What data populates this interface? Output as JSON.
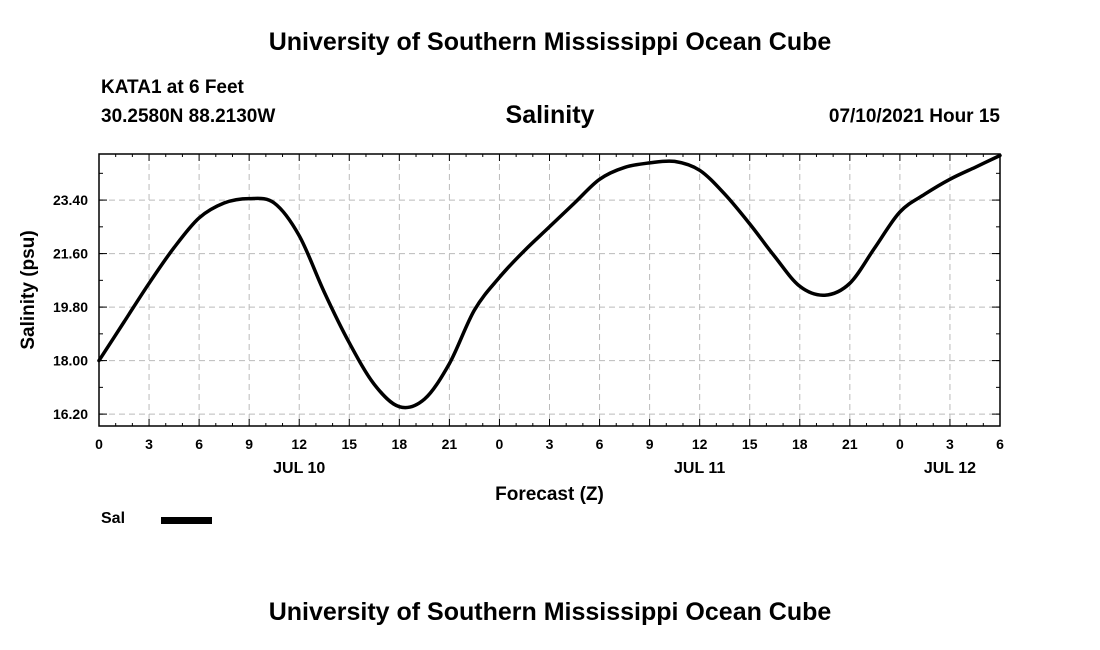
{
  "header": {
    "institution": "University of Southern Mississippi Ocean Cube",
    "station": "KATA1 at 6 Feet",
    "coordinates": "30.2580N  88.2130W",
    "variable": "Salinity",
    "timestamp": "07/10/2021 Hour 15"
  },
  "footer": {
    "institution": "University of Southern Mississippi Ocean Cube"
  },
  "legend": {
    "label": "Sal"
  },
  "chart_data": {
    "type": "line",
    "title": "Salinity",
    "xlabel": "Forecast (Z)",
    "ylabel": "Salinity (psu)",
    "x_unit": "hours",
    "xlim": [
      0,
      54
    ],
    "ylim": [
      15.8,
      24.95
    ],
    "y_ticks": [
      "16.20",
      "18.00",
      "19.80",
      "21.60",
      "23.40"
    ],
    "x_tick_labels": [
      "0",
      "3",
      "6",
      "9",
      "12",
      "15",
      "18",
      "21",
      "0",
      "3",
      "6",
      "9",
      "12",
      "15",
      "18",
      "21",
      "0",
      "3",
      "6"
    ],
    "date_labels": [
      {
        "label": "JUL 10",
        "at": 12
      },
      {
        "label": "JUL 11",
        "at": 36
      },
      {
        "label": "JUL 12",
        "at": 51
      }
    ],
    "grid": true,
    "series": [
      {
        "name": "Sal",
        "color": "#000000",
        "x": [
          0,
          1.5,
          3,
          4.5,
          6,
          7.5,
          9,
          10.5,
          12,
          13.5,
          15,
          16.5,
          18,
          19.5,
          21,
          22.5,
          24,
          25.5,
          27,
          28.5,
          30,
          31.5,
          33,
          34.5,
          36,
          37.5,
          39,
          40.5,
          42,
          43.5,
          45,
          46.5,
          48,
          49.5,
          51,
          52.5,
          54
        ],
        "y": [
          18.0,
          19.3,
          20.6,
          21.8,
          22.8,
          23.3,
          23.45,
          23.3,
          22.2,
          20.3,
          18.6,
          17.2,
          16.45,
          16.7,
          17.9,
          19.7,
          20.8,
          21.7,
          22.5,
          23.3,
          24.1,
          24.5,
          24.65,
          24.7,
          24.4,
          23.6,
          22.6,
          21.5,
          20.5,
          20.2,
          20.6,
          21.8,
          23.0,
          23.6,
          24.1,
          24.5,
          24.9
        ]
      }
    ]
  }
}
